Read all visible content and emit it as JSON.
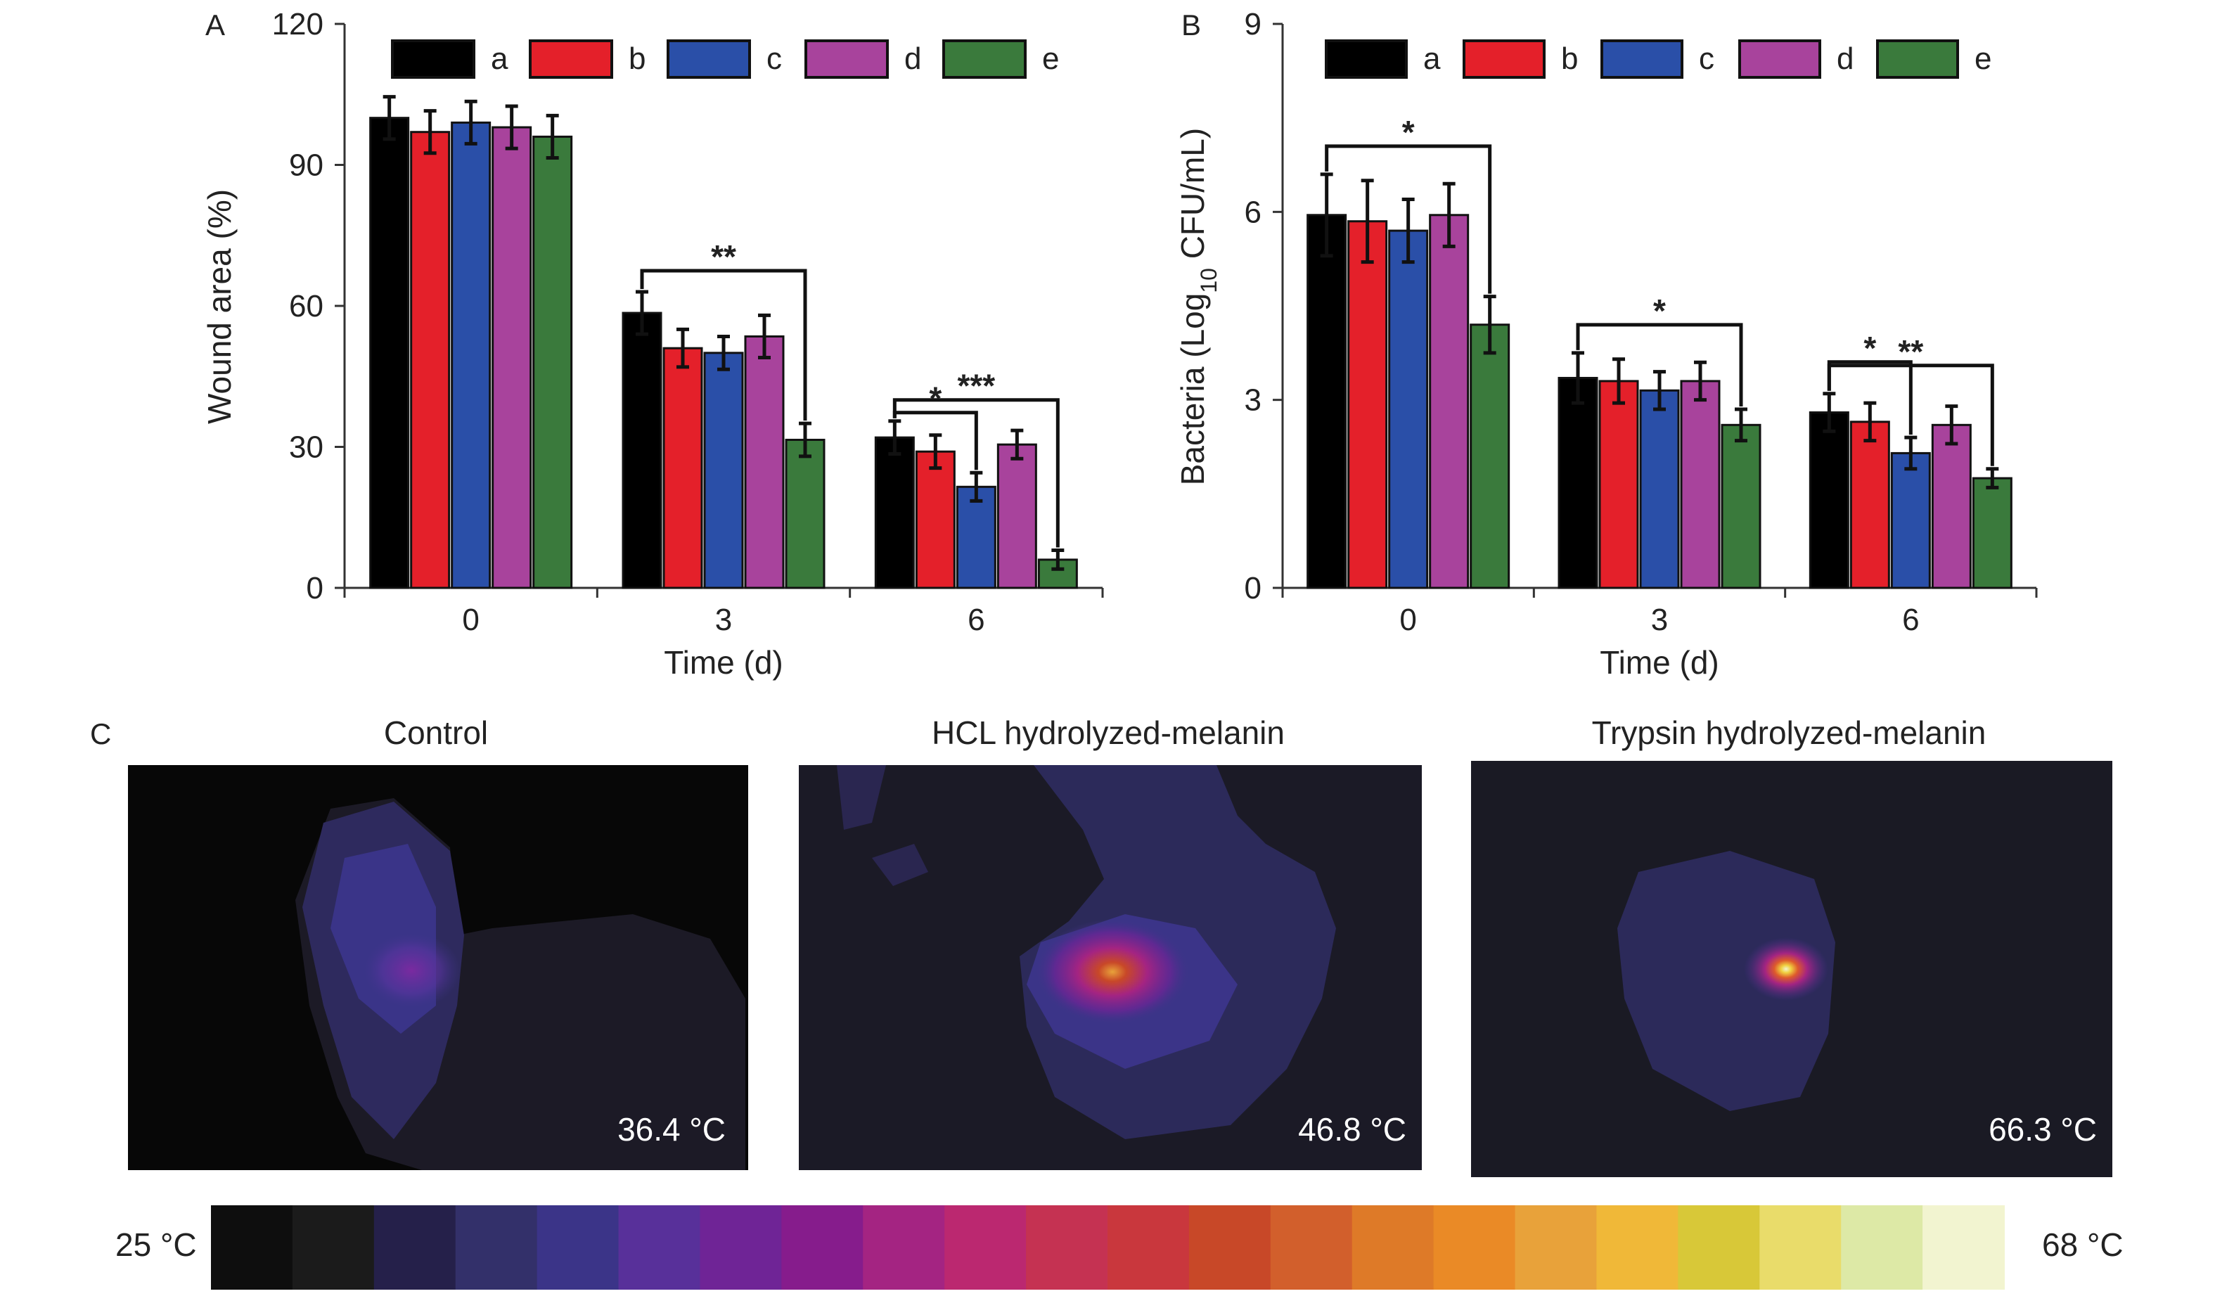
{
  "chart_data": [
    {
      "panel": "A",
      "type": "bar",
      "ylabel": "Wound area (%)",
      "xlabel": "Time (d)",
      "ylim": [
        0,
        120
      ],
      "yticks": [
        "0",
        "30",
        "60",
        "90",
        "120"
      ],
      "categories": [
        "0",
        "3",
        "6"
      ],
      "legend_position": "top",
      "series": [
        {
          "name": "a",
          "color": "#000000",
          "values": [
            100,
            58.5,
            32
          ],
          "errors": [
            4.5,
            4.5,
            3.5
          ]
        },
        {
          "name": "b",
          "color": "#e4202a",
          "values": [
            97,
            51,
            29
          ],
          "errors": [
            4.5,
            4,
            3.5
          ]
        },
        {
          "name": "c",
          "color": "#2a4fa8",
          "values": [
            99,
            50,
            21.5
          ],
          "errors": [
            4.5,
            3.5,
            3
          ]
        },
        {
          "name": "d",
          "color": "#a8439c",
          "values": [
            98,
            53.5,
            30.5
          ],
          "errors": [
            4.5,
            4.5,
            3
          ]
        },
        {
          "name": "e",
          "color": "#3a7a3c",
          "values": [
            96,
            31.5,
            6
          ],
          "errors": [
            4.5,
            3.5,
            2
          ]
        }
      ],
      "significance": [
        {
          "category": 1,
          "from": "a",
          "to": "e",
          "label": "**"
        },
        {
          "category": 2,
          "from": "a",
          "to": "e",
          "label": "***"
        },
        {
          "category": 2,
          "from": "a",
          "to": "c",
          "label": "*"
        }
      ]
    },
    {
      "panel": "B",
      "type": "bar",
      "ylabel": "Bacteria (Log10 CFU/mL)",
      "ylabel_parts": {
        "pre": "Bacteria (Log",
        "sub": "10",
        "post": " CFU/mL)"
      },
      "xlabel": "Time (d)",
      "ylim": [
        0,
        9
      ],
      "yticks": [
        "0",
        "3",
        "6",
        "9"
      ],
      "categories": [
        "0",
        "3",
        "6"
      ],
      "legend_position": "top",
      "series": [
        {
          "name": "a",
          "color": "#000000",
          "values": [
            5.95,
            3.35,
            2.8
          ],
          "errors": [
            0.65,
            0.4,
            0.3
          ]
        },
        {
          "name": "b",
          "color": "#e4202a",
          "values": [
            5.85,
            3.3,
            2.65
          ],
          "errors": [
            0.65,
            0.35,
            0.3
          ]
        },
        {
          "name": "c",
          "color": "#2a4fa8",
          "values": [
            5.7,
            3.15,
            2.15
          ],
          "errors": [
            0.5,
            0.3,
            0.25
          ]
        },
        {
          "name": "d",
          "color": "#a8439c",
          "values": [
            5.95,
            3.3,
            2.6
          ],
          "errors": [
            0.5,
            0.3,
            0.3
          ]
        },
        {
          "name": "e",
          "color": "#3a7a3c",
          "values": [
            4.2,
            2.6,
            1.75
          ],
          "errors": [
            0.45,
            0.25,
            0.15
          ]
        }
      ],
      "significance": [
        {
          "category": 0,
          "from": "a",
          "to": "e",
          "label": "*"
        },
        {
          "category": 1,
          "from": "a",
          "to": "e",
          "label": "*"
        },
        {
          "category": 2,
          "from": "a",
          "to": "c",
          "label": "*"
        },
        {
          "category": 2,
          "from": "a",
          "to": "e",
          "label": "**"
        }
      ]
    }
  ],
  "panel_c": {
    "letter": "C",
    "images": [
      {
        "title": "Control",
        "temperature": "36.4 °C",
        "hotspot": "none"
      },
      {
        "title": "HCL hydrolyzed-melanin",
        "temperature": "46.8 °C",
        "hotspot": "medium"
      },
      {
        "title": "Trypsin hydrolyzed-melanin",
        "temperature": "66.3 °C",
        "hotspot": "high"
      }
    ],
    "colorbar": {
      "min_label": "25 °C",
      "max_label": "68 °C",
      "colors": [
        "#0e0e0e",
        "#1b1b1b",
        "#25204a",
        "#33306a",
        "#3b3488",
        "#58309a",
        "#6f2496",
        "#861c8c",
        "#a42482",
        "#bb2870",
        "#c53252",
        "#c9373d",
        "#c84828",
        "#d25f2c",
        "#de7a28",
        "#ea8a26",
        "#e8a23a",
        "#f0b838",
        "#d8c838",
        "#e9dc6a",
        "#dde9a6",
        "#f2f4d0"
      ]
    }
  }
}
